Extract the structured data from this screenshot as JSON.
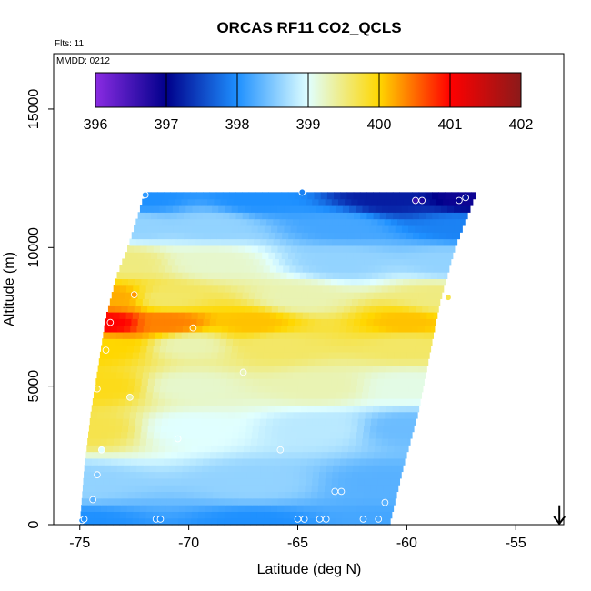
{
  "chart_data": {
    "type": "heatmap",
    "title": "ORCAS RF11 CO2_QCLS",
    "annotations": {
      "flights": "Flts: 11",
      "date": "MMDD: 0212"
    },
    "xlabel": "Latitude (deg N)",
    "ylabel": "Altitude (m)",
    "xlim": [
      -76.2,
      -52.8
    ],
    "ylim": [
      0,
      17000
    ],
    "x_ticks": [
      -75,
      -70,
      -65,
      -60,
      -55
    ],
    "x_tick_labels": [
      "-75",
      "-70",
      "-65",
      "-60",
      "-55"
    ],
    "y_ticks": [
      0,
      5000,
      10000,
      15000
    ],
    "y_tick_labels": [
      "0",
      "5000",
      "10000",
      "15000"
    ],
    "colorbar": {
      "range": [
        396,
        402
      ],
      "ticks": [
        396,
        397,
        398,
        399,
        400,
        401,
        402
      ],
      "tick_labels": [
        "396",
        "397",
        "398",
        "399",
        "400",
        "401",
        "402"
      ],
      "colors": [
        "#8a2be2",
        "#00008b",
        "#1e90ff",
        "#e0ffff",
        "#ffd700",
        "#ff0000",
        "#8b1a1a"
      ]
    },
    "domain_bounds": {
      "top_altitude": 12000,
      "bottom_altitude": 0,
      "west_edge": [
        {
          "alt": 0,
          "lat": -75.0
        },
        {
          "alt": 2000,
          "lat": -74.8
        },
        {
          "alt": 4000,
          "lat": -74.5
        },
        {
          "alt": 6000,
          "lat": -74.1
        },
        {
          "alt": 7500,
          "lat": -73.8
        },
        {
          "alt": 9000,
          "lat": -73.3
        },
        {
          "alt": 10000,
          "lat": -72.8
        },
        {
          "alt": 11000,
          "lat": -72.4
        },
        {
          "alt": 12000,
          "lat": -72.0
        }
      ],
      "east_edge": [
        {
          "alt": 0,
          "lat": -60.8
        },
        {
          "alt": 2000,
          "lat": -60.2
        },
        {
          "alt": 4000,
          "lat": -59.5
        },
        {
          "alt": 6000,
          "lat": -59.0
        },
        {
          "alt": 8000,
          "lat": -58.5
        },
        {
          "alt": 10000,
          "lat": -57.8
        },
        {
          "alt": 12000,
          "lat": -56.8
        }
      ]
    },
    "field_anchors": [
      {
        "lat": -75,
        "alt": 0,
        "co2": 398.0
      },
      {
        "lat": -67,
        "alt": 0,
        "co2": 398.0
      },
      {
        "lat": -61,
        "alt": 0,
        "co2": 398.2
      },
      {
        "lat": -75,
        "alt": 1500,
        "co2": 398.6
      },
      {
        "lat": -67,
        "alt": 1500,
        "co2": 398.6
      },
      {
        "lat": -61,
        "alt": 1500,
        "co2": 398.3
      },
      {
        "lat": -74.5,
        "alt": 3500,
        "co2": 399.7
      },
      {
        "lat": -70,
        "alt": 3500,
        "co2": 399.0
      },
      {
        "lat": -64,
        "alt": 3500,
        "co2": 398.8
      },
      {
        "lat": -60,
        "alt": 3500,
        "co2": 398.4
      },
      {
        "lat": -74,
        "alt": 5000,
        "co2": 399.9
      },
      {
        "lat": -70,
        "alt": 5000,
        "co2": 399.2
      },
      {
        "lat": -64,
        "alt": 5000,
        "co2": 399.3
      },
      {
        "lat": -60,
        "alt": 5000,
        "co2": 399.1
      },
      {
        "lat": -73.8,
        "alt": 6500,
        "co2": 400.0
      },
      {
        "lat": -70,
        "alt": 6500,
        "co2": 399.3
      },
      {
        "lat": -66,
        "alt": 6500,
        "co2": 399.6
      },
      {
        "lat": -60,
        "alt": 6500,
        "co2": 399.6
      },
      {
        "lat": -73.7,
        "alt": 7300,
        "co2": 401.0
      },
      {
        "lat": -71,
        "alt": 7300,
        "co2": 400.4
      },
      {
        "lat": -67,
        "alt": 7300,
        "co2": 400.1
      },
      {
        "lat": -60,
        "alt": 7300,
        "co2": 400.1
      },
      {
        "lat": -73.5,
        "alt": 8200,
        "co2": 400.2
      },
      {
        "lat": -71,
        "alt": 8200,
        "co2": 399.6
      },
      {
        "lat": -65,
        "alt": 8200,
        "co2": 399.3
      },
      {
        "lat": -58.5,
        "alt": 8200,
        "co2": 399.5
      },
      {
        "lat": -73,
        "alt": 9500,
        "co2": 399.5
      },
      {
        "lat": -69,
        "alt": 9500,
        "co2": 399.2
      },
      {
        "lat": -63,
        "alt": 9500,
        "co2": 398.6
      },
      {
        "lat": -58,
        "alt": 9500,
        "co2": 398.6
      },
      {
        "lat": -72.5,
        "alt": 10800,
        "co2": 398.6
      },
      {
        "lat": -69,
        "alt": 10800,
        "co2": 398.6
      },
      {
        "lat": -63,
        "alt": 10800,
        "co2": 398.2
      },
      {
        "lat": -57.5,
        "alt": 10800,
        "co2": 397.9
      },
      {
        "lat": -72,
        "alt": 11800,
        "co2": 398.0
      },
      {
        "lat": -67,
        "alt": 11800,
        "co2": 398.0
      },
      {
        "lat": -61,
        "alt": 11800,
        "co2": 397.2
      },
      {
        "lat": -57,
        "alt": 11800,
        "co2": 396.9
      }
    ],
    "observations": [
      {
        "lat": -74.9,
        "alt": 150,
        "co2": 398.0
      },
      {
        "lat": -74.8,
        "alt": 200,
        "co2": 398.0
      },
      {
        "lat": -74.4,
        "alt": 900,
        "co2": 398.3
      },
      {
        "lat": -74.2,
        "alt": 1800,
        "co2": 398.5
      },
      {
        "lat": -74.0,
        "alt": 2700,
        "co2": 399.0
      },
      {
        "lat": -74.2,
        "alt": 4900,
        "co2": 399.8
      },
      {
        "lat": -73.8,
        "alt": 6300,
        "co2": 400.0
      },
      {
        "lat": -73.6,
        "alt": 7300,
        "co2": 401.0
      },
      {
        "lat": -72.5,
        "alt": 8300,
        "co2": 400.3
      },
      {
        "lat": -72.7,
        "alt": 4600,
        "co2": 399.4
      },
      {
        "lat": -71.5,
        "alt": 200,
        "co2": 398.0
      },
      {
        "lat": -71.3,
        "alt": 200,
        "co2": 398.0
      },
      {
        "lat": -70.5,
        "alt": 3100,
        "co2": 399.0
      },
      {
        "lat": -72.0,
        "alt": 11900,
        "co2": 398.1
      },
      {
        "lat": -69.8,
        "alt": 7100,
        "co2": 400.2
      },
      {
        "lat": -67.5,
        "alt": 5500,
        "co2": 399.3
      },
      {
        "lat": -65.8,
        "alt": 2700,
        "co2": 398.8
      },
      {
        "lat": -65.0,
        "alt": 200,
        "co2": 398.0
      },
      {
        "lat": -64.7,
        "alt": 200,
        "co2": 398.0
      },
      {
        "lat": -64.0,
        "alt": 200,
        "co2": 398.1
      },
      {
        "lat": -63.7,
        "alt": 200,
        "co2": 398.1
      },
      {
        "lat": -63.3,
        "alt": 1200,
        "co2": 398.3
      },
      {
        "lat": -63.0,
        "alt": 1200,
        "co2": 398.3
      },
      {
        "lat": -62.0,
        "alt": 200,
        "co2": 398.2
      },
      {
        "lat": -61.3,
        "alt": 200,
        "co2": 398.2
      },
      {
        "lat": -61.0,
        "alt": 800,
        "co2": 398.3
      },
      {
        "lat": -64.8,
        "alt": 12000,
        "co2": 397.9
      },
      {
        "lat": -59.6,
        "alt": 11700,
        "co2": 396.6
      },
      {
        "lat": -59.3,
        "alt": 11700,
        "co2": 396.8
      },
      {
        "lat": -57.6,
        "alt": 11700,
        "co2": 397.0
      },
      {
        "lat": -57.3,
        "alt": 11800,
        "co2": 397.1
      },
      {
        "lat": -58.1,
        "alt": 8200,
        "co2": 399.7
      }
    ],
    "marker": {
      "type": "arrow-down",
      "lat": -53.0,
      "alt_top": 700,
      "alt_bottom": 0
    }
  }
}
